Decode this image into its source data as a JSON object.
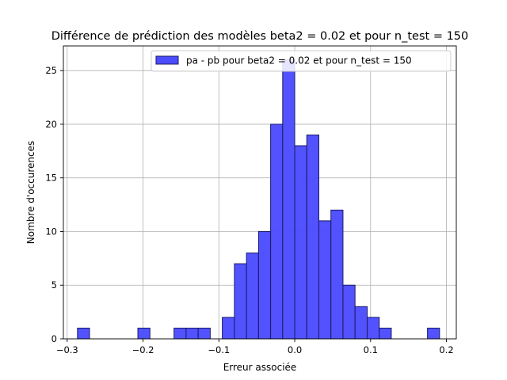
{
  "chart_data": {
    "type": "bar",
    "title": "Différence de prédiction des modèles beta2 = 0.02 et pour n_test = 150",
    "xlabel": "Erreur associée",
    "ylabel": "Nombre d'occurences",
    "xlim": [
      -0.305,
      0.213
    ],
    "ylim": [
      0,
      27.3
    ],
    "xticks": [
      -0.3,
      -0.2,
      -0.1,
      0.0,
      0.1,
      0.2
    ],
    "xtick_labels": [
      "−0.3",
      "−0.2",
      "−0.1",
      "0.0",
      "0.1",
      "0.2"
    ],
    "yticks": [
      0,
      5,
      10,
      15,
      20,
      25
    ],
    "ytick_labels": [
      "0",
      "5",
      "10",
      "15",
      "20",
      "25"
    ],
    "grid": true,
    "legend_position": "top-right",
    "bar_color": "#4c4cff",
    "edge_color": "#1a1a66",
    "series": [
      {
        "name": "pa - pb pour beta2 = 0.02 et pour n_test = 150",
        "bins": [
          [
            -0.2864,
            -0.2705,
            1
          ],
          [
            -0.2705,
            -0.2545,
            0
          ],
          [
            -0.2545,
            -0.2386,
            0
          ],
          [
            -0.2386,
            -0.2227,
            0
          ],
          [
            -0.2227,
            -0.2068,
            0
          ],
          [
            -0.2068,
            -0.1909,
            1
          ],
          [
            -0.1909,
            -0.175,
            0
          ],
          [
            -0.175,
            -0.1591,
            0
          ],
          [
            -0.1591,
            -0.1432,
            1
          ],
          [
            -0.1432,
            -0.1273,
            1
          ],
          [
            -0.1273,
            -0.1114,
            1
          ],
          [
            -0.1114,
            -0.0955,
            0
          ],
          [
            -0.0955,
            -0.0795,
            2
          ],
          [
            -0.0795,
            -0.0636,
            7
          ],
          [
            -0.0636,
            -0.0477,
            8
          ],
          [
            -0.0477,
            -0.0318,
            10
          ],
          [
            -0.0318,
            -0.0159,
            20
          ],
          [
            -0.0159,
            0.0,
            26
          ],
          [
            0.0,
            0.0159,
            18
          ],
          [
            0.0159,
            0.0318,
            19
          ],
          [
            0.0318,
            0.0477,
            11
          ],
          [
            0.0477,
            0.0636,
            12
          ],
          [
            0.0636,
            0.0795,
            5
          ],
          [
            0.0795,
            0.0955,
            3
          ],
          [
            0.0955,
            0.1114,
            2
          ],
          [
            0.1114,
            0.1273,
            1
          ],
          [
            0.1273,
            0.1432,
            0
          ],
          [
            0.1432,
            0.1591,
            0
          ],
          [
            0.1591,
            0.175,
            0
          ],
          [
            0.175,
            0.1909,
            1
          ]
        ]
      }
    ]
  }
}
